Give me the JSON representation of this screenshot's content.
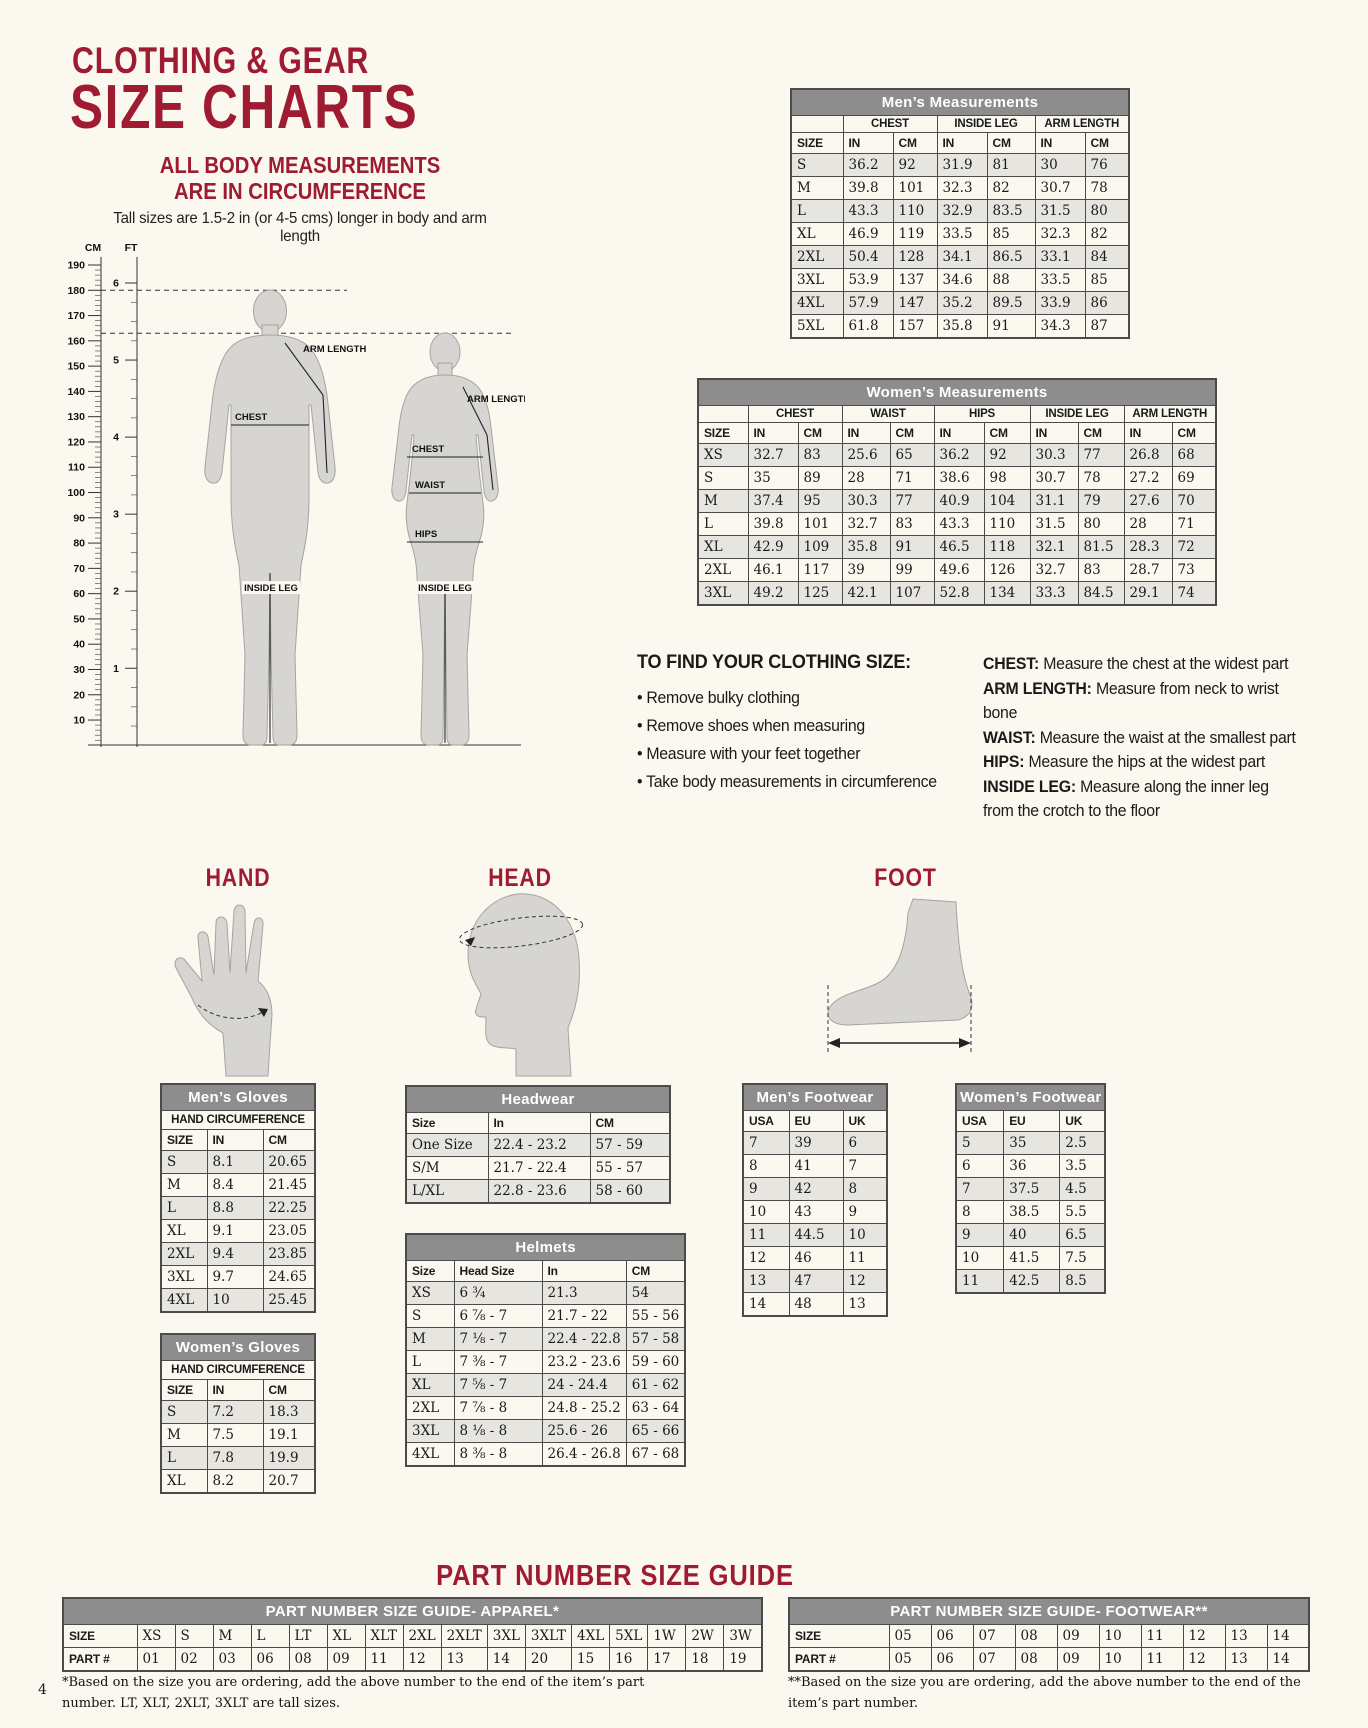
{
  "header": {
    "title_line1": "CLOTHING & GEAR",
    "title_line2": "SIZE CHARTS",
    "subtitle_line1": "ALL BODY MEASUREMENTS",
    "subtitle_line2": "ARE IN CIRCUMFERENCE",
    "tall_note": "Tall sizes are 1.5-2 in (or 4-5 cms) longer in body and arm length"
  },
  "ruler": {
    "cm_label": "CM",
    "ft_label": "FT",
    "cm_ticks": [
      "190",
      "180",
      "170",
      "160",
      "150",
      "140",
      "130",
      "120",
      "110",
      "100",
      "90",
      "80",
      "70",
      "60",
      "50",
      "40",
      "30",
      "20",
      "10"
    ],
    "ft_ticks": [
      "6",
      "5",
      "4",
      "3",
      "2",
      "1"
    ]
  },
  "figure_labels": {
    "arm_length_male": "ARM LENGTH",
    "chest_male": "CHEST",
    "arm_length_female": "ARM LENGTH",
    "chest_female": "CHEST",
    "waist": "WAIST",
    "hips": "HIPS",
    "inside_leg_male": "INSIDE LEG",
    "inside_leg_female": "INSIDE LEG"
  },
  "find_size": {
    "title": "TO FIND YOUR CLOTHING SIZE:",
    "bullets": [
      "Remove bulky clothing",
      "Remove shoes when measuring",
      "Measure with your feet together",
      "Take body measurements in circumference"
    ]
  },
  "definitions": [
    {
      "term": "CHEST:",
      "text": "Measure the chest at the widest part"
    },
    {
      "term": "ARM LENGTH:",
      "text": "Measure from neck to wrist bone"
    },
    {
      "term": "WAIST:",
      "text": "Measure the waist at the smallest part"
    },
    {
      "term": "HIPS:",
      "text": "Measure the hips at the widest part"
    },
    {
      "term": "INSIDE LEG:",
      "text": "Measure along the inner leg from the crotch to the floor"
    }
  ],
  "sections": {
    "hand": "HAND",
    "head": "HEAD",
    "foot": "FOOT"
  },
  "part_guide_title": "PART NUMBER SIZE GUIDE",
  "footnotes": {
    "apparel": "*Based on the size you are ordering, add the above number to the end of the item’s part number. LT, XLT, 2XLT, 3XLT are tall sizes.",
    "footwear": "**Based on the size you are ordering, add the above number to the end of the item’s part number."
  },
  "page_number": "4",
  "colors": {
    "accent": "#9E1B32",
    "table_header": "#8D8D8D",
    "row_alt": "#E7E5E0",
    "background": "#FAF8EF"
  },
  "tables": {
    "mens_measurements": {
      "title": "Men’s Measurements",
      "groups": [
        {
          "label": "",
          "span": 1
        },
        {
          "label": "CHEST",
          "span": 2
        },
        {
          "label": "INSIDE LEG",
          "span": 2
        },
        {
          "label": "ARM LENGTH",
          "span": 2
        }
      ],
      "col_headers": [
        "SIZE",
        "IN",
        "CM",
        "IN",
        "CM",
        "IN",
        "CM"
      ],
      "rows": [
        [
          "S",
          "36.2",
          "92",
          "31.9",
          "81",
          "30",
          "76"
        ],
        [
          "M",
          "39.8",
          "101",
          "32.3",
          "82",
          "30.7",
          "78"
        ],
        [
          "L",
          "43.3",
          "110",
          "32.9",
          "83.5",
          "31.5",
          "80"
        ],
        [
          "XL",
          "46.9",
          "119",
          "33.5",
          "85",
          "32.3",
          "82"
        ],
        [
          "2XL",
          "50.4",
          "128",
          "34.1",
          "86.5",
          "33.1",
          "84"
        ],
        [
          "3XL",
          "53.9",
          "137",
          "34.6",
          "88",
          "33.5",
          "85"
        ],
        [
          "4XL",
          "57.9",
          "147",
          "35.2",
          "89.5",
          "33.9",
          "86"
        ],
        [
          "5XL",
          "61.8",
          "157",
          "35.8",
          "91",
          "34.3",
          "87"
        ]
      ]
    },
    "womens_measurements": {
      "title": "Women’s Measurements",
      "groups": [
        {
          "label": "",
          "span": 1
        },
        {
          "label": "CHEST",
          "span": 2
        },
        {
          "label": "WAIST",
          "span": 2
        },
        {
          "label": "HIPS",
          "span": 2
        },
        {
          "label": "INSIDE LEG",
          "span": 2
        },
        {
          "label": "ARM LENGTH",
          "span": 2
        }
      ],
      "col_headers": [
        "SIZE",
        "IN",
        "CM",
        "IN",
        "CM",
        "IN",
        "CM",
        "IN",
        "CM",
        "IN",
        "CM"
      ],
      "rows": [
        [
          "XS",
          "32.7",
          "83",
          "25.6",
          "65",
          "36.2",
          "92",
          "30.3",
          "77",
          "26.8",
          "68"
        ],
        [
          "S",
          "35",
          "89",
          "28",
          "71",
          "38.6",
          "98",
          "30.7",
          "78",
          "27.2",
          "69"
        ],
        [
          "M",
          "37.4",
          "95",
          "30.3",
          "77",
          "40.9",
          "104",
          "31.1",
          "79",
          "27.6",
          "70"
        ],
        [
          "L",
          "39.8",
          "101",
          "32.7",
          "83",
          "43.3",
          "110",
          "31.5",
          "80",
          "28",
          "71"
        ],
        [
          "XL",
          "42.9",
          "109",
          "35.8",
          "91",
          "46.5",
          "118",
          "32.1",
          "81.5",
          "28.3",
          "72"
        ],
        [
          "2XL",
          "46.1",
          "117",
          "39",
          "99",
          "49.6",
          "126",
          "32.7",
          "83",
          "28.7",
          "73"
        ],
        [
          "3XL",
          "49.2",
          "125",
          "42.1",
          "107",
          "52.8",
          "134",
          "33.3",
          "84.5",
          "29.1",
          "74"
        ]
      ]
    },
    "mens_gloves": {
      "title": "Men’s Gloves",
      "subtitle": "HAND CIRCUMFERENCE",
      "col_headers": [
        "SIZE",
        "IN",
        "CM"
      ],
      "rows": [
        [
          "S",
          "8.1",
          "20.65"
        ],
        [
          "M",
          "8.4",
          "21.45"
        ],
        [
          "L",
          "8.8",
          "22.25"
        ],
        [
          "XL",
          "9.1",
          "23.05"
        ],
        [
          "2XL",
          "9.4",
          "23.85"
        ],
        [
          "3XL",
          "9.7",
          "24.65"
        ],
        [
          "4XL",
          "10",
          "25.45"
        ]
      ]
    },
    "womens_gloves": {
      "title": "Women’s Gloves",
      "subtitle": "HAND CIRCUMFERENCE",
      "col_headers": [
        "SIZE",
        "IN",
        "CM"
      ],
      "rows": [
        [
          "S",
          "7.2",
          "18.3"
        ],
        [
          "M",
          "7.5",
          "19.1"
        ],
        [
          "L",
          "7.8",
          "19.9"
        ],
        [
          "XL",
          "8.2",
          "20.7"
        ]
      ]
    },
    "headwear": {
      "title": "Headwear",
      "col_headers": [
        "Size",
        "In",
        "CM"
      ],
      "rows": [
        [
          "One Size",
          "22.4 - 23.2",
          "57 - 59"
        ],
        [
          "S/M",
          "21.7 - 22.4",
          "55 - 57"
        ],
        [
          "L/XL",
          "22.8 - 23.6",
          "58 - 60"
        ]
      ]
    },
    "helmets": {
      "title": "Helmets",
      "col_headers": [
        "Size",
        "Head Size",
        "In",
        "CM"
      ],
      "rows": [
        [
          "XS",
          "6 ¾",
          "21.3",
          "54"
        ],
        [
          "S",
          "6 ⅞ - 7",
          "21.7 - 22",
          "55 - 56"
        ],
        [
          "M",
          "7 ⅛ - 7",
          "22.4 - 22.8",
          "57 - 58"
        ],
        [
          "L",
          "7 ⅜ - 7",
          "23.2 - 23.6",
          "59 - 60"
        ],
        [
          "XL",
          "7 ⅝ - 7",
          "24 - 24.4",
          "61 - 62"
        ],
        [
          "2XL",
          "7 ⅞ - 8",
          "24.8 - 25.2",
          "63 - 64"
        ],
        [
          "3XL",
          "8 ⅛ - 8",
          "25.6 - 26",
          "65 - 66"
        ],
        [
          "4XL",
          "8 ⅜ - 8",
          "26.4 - 26.8",
          "67 - 68"
        ]
      ]
    },
    "mens_footwear": {
      "title": "Men’s Footwear",
      "col_headers": [
        "USA",
        "EU",
        "UK"
      ],
      "rows": [
        [
          "7",
          "39",
          "6"
        ],
        [
          "8",
          "41",
          "7"
        ],
        [
          "9",
          "42",
          "8"
        ],
        [
          "10",
          "43",
          "9"
        ],
        [
          "11",
          "44.5",
          "10"
        ],
        [
          "12",
          "46",
          "11"
        ],
        [
          "13",
          "47",
          "12"
        ],
        [
          "14",
          "48",
          "13"
        ]
      ]
    },
    "womens_footwear": {
      "title": "Women’s Footwear",
      "col_headers": [
        "USA",
        "EU",
        "UK"
      ],
      "rows": [
        [
          "5",
          "35",
          "2.5"
        ],
        [
          "6",
          "36",
          "3.5"
        ],
        [
          "7",
          "37.5",
          "4.5"
        ],
        [
          "8",
          "38.5",
          "5.5"
        ],
        [
          "9",
          "40",
          "6.5"
        ],
        [
          "10",
          "41.5",
          "7.5"
        ],
        [
          "11",
          "42.5",
          "8.5"
        ]
      ]
    },
    "part_guide_apparel": {
      "title": "PART NUMBER SIZE GUIDE- APPAREL*",
      "rows": [
        [
          "SIZE",
          "XS",
          "S",
          "M",
          "L",
          "LT",
          "XL",
          "XLT",
          "2XL",
          "2XLT",
          "3XL",
          "3XLT",
          "4XL",
          "5XL",
          "1W",
          "2W",
          "3W"
        ],
        [
          "PART #",
          "01",
          "02",
          "03",
          "06",
          "08",
          "09",
          "11",
          "12",
          "13",
          "14",
          "20",
          "15",
          "16",
          "17",
          "18",
          "19"
        ]
      ]
    },
    "part_guide_footwear": {
      "title": "PART NUMBER SIZE GUIDE- FOOTWEAR**",
      "rows": [
        [
          "SIZE",
          "05",
          "06",
          "07",
          "08",
          "09",
          "10",
          "11",
          "12",
          "13",
          "14"
        ],
        [
          "PART #",
          "05",
          "06",
          "07",
          "08",
          "09",
          "10",
          "11",
          "12",
          "13",
          "14"
        ]
      ]
    }
  }
}
